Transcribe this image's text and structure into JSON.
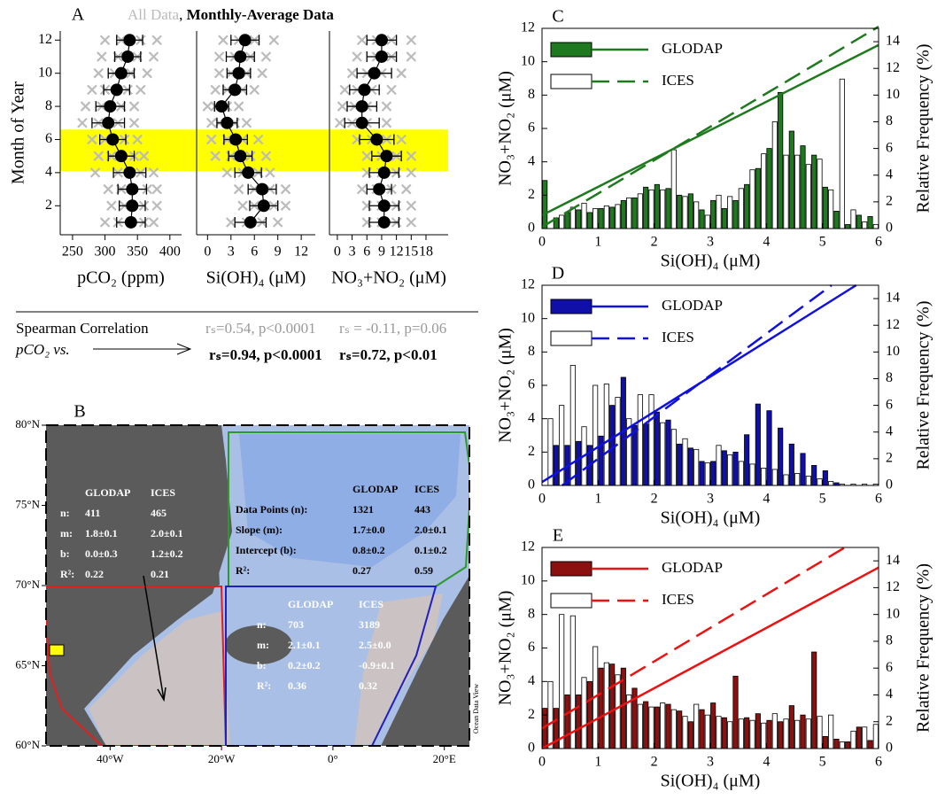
{
  "chart_data": [
    {
      "type": "dot",
      "panel": "A",
      "all_data_label": "All Data",
      "legend_separator": ", ",
      "mean_label": "Monthly-Average Data",
      "xlabel": "pCO₂ (ppm)",
      "ylabel": "Month of Year",
      "xlim": [
        231,
        418
      ],
      "xticks": [
        250,
        300,
        350,
        400
      ],
      "ylim": [
        0.25,
        12.55
      ],
      "yticks": [
        2,
        4,
        6,
        8,
        10,
        12
      ],
      "highlight": [
        4.1,
        6.6
      ],
      "highlight_color": "#ffff00",
      "all_data_color": "#bbbbbb",
      "color": "#000000",
      "y": [
        1,
        2,
        3,
        4,
        5,
        6,
        7,
        8,
        9,
        10,
        11,
        12
      ],
      "values": [
        340,
        342,
        342,
        338,
        325,
        312,
        305,
        308,
        318,
        325,
        335,
        338
      ],
      "errors": [
        22,
        20,
        22,
        25,
        20,
        20,
        25,
        22,
        20,
        20,
        20,
        20
      ],
      "all_data": [
        [
          300,
          320,
          360,
          375
        ],
        [
          310,
          330,
          360,
          380
        ],
        [
          305,
          325,
          365,
          380
        ],
        [
          285,
          320,
          355,
          375
        ],
        [
          290,
          310,
          345,
          360
        ],
        [
          280,
          300,
          330,
          350
        ],
        [
          265,
          290,
          320,
          345
        ],
        [
          270,
          295,
          325,
          345
        ],
        [
          280,
          300,
          335,
          355
        ],
        [
          290,
          315,
          340,
          365
        ],
        [
          295,
          320,
          350,
          375
        ],
        [
          300,
          325,
          355,
          380
        ]
      ]
    },
    {
      "type": "dot",
      "xlabel": "Si(OH)₄ (μM)",
      "xlim": [
        -1.4,
        13.8
      ],
      "xticks": [
        0,
        3,
        6,
        9,
        12
      ],
      "ylim": [
        0.25,
        12.55
      ],
      "all_data_color": "#bbbbbb",
      "color": "#000000",
      "y": [
        1,
        2,
        3,
        4,
        5,
        6,
        7,
        8,
        9,
        10,
        11,
        12
      ],
      "values": [
        5.5,
        7.2,
        7.0,
        5.2,
        4.2,
        3.6,
        2.5,
        1.8,
        3.5,
        4.0,
        4.2,
        4.8
      ],
      "errors": [
        2.0,
        1.8,
        1.8,
        1.7,
        1.5,
        1.5,
        1.3,
        0.9,
        1.5,
        1.5,
        1.8,
        1.8
      ],
      "all_data": [
        [
          3,
          5,
          7,
          9
        ],
        [
          4.5,
          6,
          8.5,
          10
        ],
        [
          4,
          6,
          8,
          10
        ],
        [
          2.5,
          4.5,
          6.5,
          8
        ],
        [
          1,
          3,
          5.5,
          7.5
        ],
        [
          0.5,
          2.5,
          4.5,
          6.5
        ],
        [
          0.5,
          1.5,
          3.5,
          5
        ],
        [
          0,
          1,
          2.5,
          4
        ],
        [
          1,
          2.5,
          4.5,
          6
        ],
        [
          1.5,
          3,
          5,
          7
        ],
        [
          1.5,
          3.5,
          5.5,
          7.5
        ],
        [
          2,
          4,
          6,
          8.5
        ]
      ]
    },
    {
      "type": "dot",
      "xlabel": "NO₃+NO₂ (μM)",
      "xlim": [
        -1.6,
        22.5
      ],
      "xticks": [
        0,
        3,
        6,
        9,
        12,
        15,
        18
      ],
      "ylim": [
        0.25,
        12.55
      ],
      "all_data_color": "#bbbbbb",
      "color": "#000000",
      "y": [
        1,
        2,
        3,
        4,
        5,
        6,
        7,
        8,
        9,
        10,
        11,
        12
      ],
      "values": [
        9.5,
        9.5,
        8.5,
        9.5,
        10,
        8,
        5,
        5,
        5.5,
        7.5,
        9,
        9
      ],
      "errors": [
        3,
        3,
        2.5,
        3,
        3,
        3.5,
        3.5,
        3,
        3,
        3.5,
        3,
        3
      ],
      "all_data": [
        [
          6,
          9,
          12,
          15
        ],
        [
          6,
          9,
          12,
          15
        ],
        [
          5,
          8,
          11,
          14
        ],
        [
          6,
          9,
          12,
          15
        ],
        [
          6,
          9,
          12,
          15
        ],
        [
          4,
          7,
          10,
          13
        ],
        [
          0.5,
          3,
          6,
          10
        ],
        [
          1,
          3.5,
          6,
          10
        ],
        [
          1.5,
          4,
          7,
          11
        ],
        [
          3,
          6,
          9,
          13
        ],
        [
          4,
          8,
          11,
          15
        ],
        [
          5,
          8,
          11,
          15
        ]
      ]
    },
    {
      "type": "map",
      "panel": "B",
      "source_note": "Ocean Data View",
      "xlim": [
        -51.5,
        24.5
      ],
      "ylim": [
        60,
        80
      ],
      "xticks": [
        {
          "value": -40,
          "label": "40°W"
        },
        {
          "value": -20,
          "label": "20°W"
        },
        {
          "value": 0,
          "label": "0°"
        },
        {
          "value": 20,
          "label": "20°E"
        }
      ],
      "yticks": [
        {
          "value": 60,
          "label": "60°N"
        },
        {
          "value": 65,
          "label": "65°N"
        },
        {
          "value": 70,
          "label": "70°N"
        },
        {
          "value": 75,
          "label": "75°N"
        },
        {
          "value": 80,
          "label": "80°N"
        }
      ],
      "tables": [
        {
          "header": [
            "GLODAP",
            "ICES"
          ],
          "rows": [
            [
              "n:",
              411,
              465
            ],
            [
              "m:",
              "1.8±0.1",
              "2.0±0.1"
            ],
            [
              "b:",
              "0.0±0.3",
              "1.2±0.2"
            ],
            [
              "R²:",
              0.22,
              0.21
            ]
          ]
        },
        {
          "header": [
            "GLODAP",
            "ICES"
          ],
          "rows": [
            [
              "Data Points (n):",
              1321,
              443
            ],
            [
              "Slope (m):",
              "1.7±0.0",
              "2.0±0.1"
            ],
            [
              "Intercept (b):",
              "0.8±0.2",
              "0.1±0.2"
            ],
            [
              "R²:",
              0.27,
              0.59
            ]
          ]
        },
        {
          "header": [
            "GLODAP",
            "ICES"
          ],
          "rows": [
            [
              "n:",
              703,
              3189
            ],
            [
              "m:",
              "2.1±0.1",
              "2.5±0.0"
            ],
            [
              "b:",
              "0.2±0.2",
              "-0.9±0.1"
            ],
            [
              "R²:",
              0.36,
              0.32
            ]
          ]
        }
      ]
    },
    {
      "type": "histogram",
      "panel": "C",
      "xlabel": "Si(OH)₄ (μM)",
      "ylabel": "NO₃+NO₂ (μM)",
      "y2label": "Relative Frequency (%)",
      "xlim": [
        0,
        6
      ],
      "xticks": [
        0,
        1,
        2,
        3,
        4,
        5,
        6
      ],
      "ylim": [
        0,
        12
      ],
      "yticks": [
        0,
        2,
        4,
        6,
        8,
        10,
        12
      ],
      "y2lim": [
        0,
        15
      ],
      "y2ticks": [
        0,
        2,
        4,
        6,
        8,
        10,
        12,
        14
      ],
      "bins": [
        0,
        0.2,
        0.4,
        0.6,
        0.8,
        1.0,
        1.2,
        1.4,
        1.6,
        1.8,
        2.0,
        2.2,
        2.4,
        2.6,
        2.8,
        3.0,
        3.2,
        3.4,
        3.6,
        3.8,
        4.0,
        4.2,
        4.4,
        4.6,
        4.8,
        5.0,
        5.2,
        5.4,
        5.6,
        5.8,
        6.0
      ],
      "series": [
        {
          "name": "GLODAP",
          "color": "#1f7a1f",
          "axis": "y2",
          "values": [
            3.6,
            0.8,
            1.2,
            1.4,
            1.2,
            1.5,
            1.6,
            2.1,
            2.3,
            3.1,
            3.3,
            3.0,
            2.5,
            2.6,
            1.4,
            2.1,
            1.5,
            2.1,
            3.3,
            4.5,
            6.0,
            10.2,
            7.3,
            6.2,
            5.5,
            3.1,
            1.3,
            0.3,
            1.0,
            0.9
          ]
        },
        {
          "name": "ICES",
          "color": "#ffffff",
          "axis": "y2",
          "values": [
            0,
            1.0,
            1.6,
            1.9,
            1.5,
            1.7,
            1.8,
            2.3,
            2.6,
            2.9,
            2.9,
            5.9,
            2.4,
            2.0,
            1.0,
            2.5,
            2.4,
            3.0,
            4.4,
            5.6,
            8.0,
            5.5,
            5.5,
            4.8,
            5.2,
            2.9,
            11.2,
            1.4,
            0.5,
            0.3
          ]
        }
      ],
      "lines": [
        {
          "color": "#1f7a1f",
          "style": "solid",
          "x": [
            0,
            6
          ],
          "values": [
            0.8,
            11.0
          ]
        },
        {
          "color": "#1f7a1f",
          "style": "dashed",
          "x": [
            0,
            6
          ],
          "values": [
            0.1,
            12.1
          ]
        }
      ]
    },
    {
      "type": "histogram",
      "panel": "D",
      "xlabel": "Si(OH)₄ (μM)",
      "ylabel": "NO₃+NO₂ (μM)",
      "y2label": "Relative Frequency (%)",
      "xlim": [
        0,
        6
      ],
      "xticks": [
        0,
        1,
        2,
        3,
        4,
        5,
        6
      ],
      "ylim": [
        0,
        12
      ],
      "yticks": [
        0,
        2,
        4,
        6,
        8,
        10,
        12
      ],
      "y2lim": [
        0,
        15
      ],
      "y2ticks": [
        0,
        2,
        4,
        6,
        8,
        10,
        12,
        14
      ],
      "bins": [
        0,
        0.2,
        0.4,
        0.6,
        0.8,
        1.0,
        1.2,
        1.4,
        1.6,
        1.8,
        2.0,
        2.2,
        2.4,
        2.6,
        2.8,
        3.0,
        3.2,
        3.4,
        3.6,
        3.8,
        4.0,
        4.2,
        4.4,
        4.6,
        4.8,
        5.0,
        5.2,
        5.4,
        5.6,
        5.8,
        6.0
      ],
      "series": [
        {
          "name": "GLODAP",
          "color": "#1010a8",
          "axis": "y2",
          "values": [
            0,
            3.0,
            3.0,
            3.3,
            3.0,
            3.7,
            6.0,
            8.1,
            4.5,
            4.6,
            5.5,
            4.9,
            3.1,
            2.8,
            1.8,
            1.8,
            2.6,
            2.5,
            3.8,
            6.1,
            5.6,
            4.3,
            3.1,
            2.4,
            1.5,
            1.1,
            0.2,
            0,
            0,
            0
          ]
        },
        {
          "name": "ICES",
          "color": "#ffffff",
          "axis": "y2",
          "values": [
            5.0,
            6.0,
            9.0,
            4.4,
            7.5,
            7.6,
            6.6,
            5.0,
            6.8,
            6.8,
            4.7,
            4.2,
            3.5,
            2.7,
            1.7,
            3.0,
            2.3,
            1.8,
            1.6,
            1.3,
            1.2,
            0.8,
            0.9,
            0.7,
            0.5,
            0.3,
            0.1,
            0.1,
            0.1,
            0.1
          ]
        }
      ],
      "lines": [
        {
          "color": "#1010e0",
          "style": "solid",
          "x": [
            0,
            5.6
          ],
          "values": [
            0.2,
            12
          ]
        },
        {
          "color": "#1010e0",
          "style": "dashed",
          "x": [
            0.36,
            5.16
          ],
          "values": [
            0,
            12
          ]
        }
      ]
    },
    {
      "type": "histogram",
      "panel": "E",
      "xlabel": "Si(OH)₄ (μM)",
      "ylabel": "NO₃+NO₂ (μM)",
      "y2label": "Relative Frequency (%)",
      "xlim": [
        0,
        6
      ],
      "xticks": [
        0,
        1,
        2,
        3,
        4,
        5,
        6
      ],
      "ylim": [
        0,
        12
      ],
      "yticks": [
        0,
        2,
        4,
        6,
        8,
        10,
        12
      ],
      "y2lim": [
        0,
        15
      ],
      "y2ticks": [
        0,
        2,
        4,
        6,
        8,
        10,
        12,
        14
      ],
      "bins": [
        0,
        0.2,
        0.4,
        0.6,
        0.8,
        1.0,
        1.2,
        1.4,
        1.6,
        1.8,
        2.0,
        2.2,
        2.4,
        2.6,
        2.8,
        3.0,
        3.2,
        3.4,
        3.6,
        3.8,
        4.0,
        4.2,
        4.4,
        4.6,
        4.8,
        5.0,
        5.2,
        5.4,
        5.6,
        5.8,
        6.0
      ],
      "series": [
        {
          "name": "GLODAP",
          "color": "#8b1010",
          "axis": "y2",
          "values": [
            3.0,
            3.0,
            4.0,
            4.0,
            5.0,
            6.0,
            6.3,
            6.0,
            4.5,
            3.5,
            3.1,
            3.3,
            2.8,
            2.0,
            2.9,
            3.4,
            2.3,
            5.4,
            2.3,
            2.6,
            2.1,
            2.0,
            3.2,
            2.5,
            7.2,
            0.9,
            0.7,
            0.5,
            1.6,
            0.6
          ]
        },
        {
          "name": "ICES",
          "color": "#ffffff",
          "axis": "y2",
          "values": [
            5.0,
            10.0,
            9.9,
            5.3,
            7.6,
            6.4,
            5.5,
            4.0,
            3.3,
            3.1,
            3.4,
            2.9,
            2.4,
            3.3,
            2.5,
            2.4,
            2.0,
            2.2,
            2.1,
            1.9,
            2.6,
            2.2,
            2.1,
            2.2,
            2.4,
            2.5,
            0.5,
            1.3,
            1.6,
            1.8
          ]
        }
      ],
      "lines": [
        {
          "color": "#ee1111",
          "style": "solid",
          "x": [
            0,
            6
          ],
          "values": [
            0.0,
            10.8
          ]
        },
        {
          "color": "#ee1111",
          "style": "dashed",
          "x": [
            0,
            5.4
          ],
          "values": [
            1.2,
            12.0
          ]
        }
      ]
    }
  ],
  "correlation": {
    "label": "Spearman Correlation",
    "subject": "pCO₂ vs.",
    "all_data": [
      "rₛ=0.54, p<0.0001",
      "rₛ = -0.11, p=0.06"
    ],
    "monthly": [
      "rₛ=0.94, p<0.0001",
      "rₛ=0.72, p<0.01"
    ]
  }
}
